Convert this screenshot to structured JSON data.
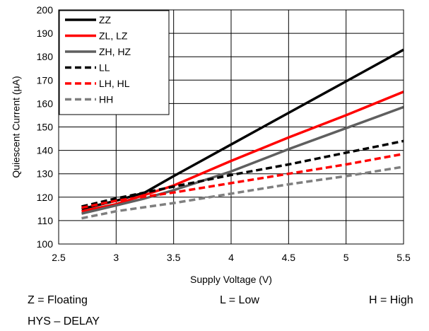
{
  "chart_data": {
    "type": "line",
    "title": "",
    "xlabel": "Supply Voltage (V)",
    "ylabel": "Quiescent Current (µA)",
    "xlim": [
      2.5,
      5.5
    ],
    "ylim": [
      100,
      200
    ],
    "xticks": [
      "2.5",
      "3",
      "3.5",
      "4",
      "4.5",
      "5",
      "5.5"
    ],
    "yticks": [
      "100",
      "110",
      "120",
      "130",
      "140",
      "150",
      "160",
      "170",
      "180",
      "190",
      "200"
    ],
    "grid": true,
    "legend_position": "top-left",
    "series": [
      {
        "name": "ZZ",
        "color": "#000000",
        "dash": "solid",
        "points": [
          [
            2.7,
            115
          ],
          [
            3.0,
            118.5
          ],
          [
            3.25,
            122
          ],
          [
            3.5,
            129
          ],
          [
            4.0,
            142.5
          ],
          [
            4.5,
            156
          ],
          [
            5.0,
            169.5
          ],
          [
            5.5,
            183
          ]
        ]
      },
      {
        "name": "ZL, LZ",
        "color": "#ff0000",
        "dash": "solid",
        "points": [
          [
            2.7,
            114
          ],
          [
            3.0,
            117
          ],
          [
            3.25,
            121
          ],
          [
            3.5,
            125
          ],
          [
            4.0,
            135.5
          ],
          [
            4.5,
            145.5
          ],
          [
            5.0,
            155
          ],
          [
            5.5,
            165
          ]
        ]
      },
      {
        "name": "ZH, HZ",
        "color": "#5f5f5f",
        "dash": "solid",
        "points": [
          [
            2.7,
            113
          ],
          [
            3.0,
            116.5
          ],
          [
            3.25,
            119.5
          ],
          [
            3.5,
            123
          ],
          [
            4.0,
            131
          ],
          [
            4.5,
            140.5
          ],
          [
            5.0,
            149.5
          ],
          [
            5.5,
            158.5
          ]
        ]
      },
      {
        "name": "LL",
        "color": "#000000",
        "dash": "dashed",
        "points": [
          [
            2.7,
            116
          ],
          [
            3.0,
            119.5
          ],
          [
            3.5,
            124.5
          ],
          [
            4.0,
            129.5
          ],
          [
            4.5,
            134
          ],
          [
            5.0,
            139
          ],
          [
            5.5,
            144
          ]
        ]
      },
      {
        "name": "LH, HL",
        "color": "#ff0000",
        "dash": "dashed",
        "points": [
          [
            2.7,
            115.5
          ],
          [
            3.0,
            118.5
          ],
          [
            3.5,
            122
          ],
          [
            4.0,
            126
          ],
          [
            4.5,
            130
          ],
          [
            5.0,
            134
          ],
          [
            5.5,
            138.5
          ]
        ]
      },
      {
        "name": "HH",
        "color": "#7f7f7f",
        "dash": "dashed",
        "points": [
          [
            2.7,
            111
          ],
          [
            3.0,
            114
          ],
          [
            3.5,
            117.5
          ],
          [
            4.0,
            121.5
          ],
          [
            4.5,
            125.5
          ],
          [
            5.0,
            129
          ],
          [
            5.5,
            133
          ]
        ]
      }
    ]
  },
  "notes": {
    "z_floating": "Z = Floating",
    "l_low": "L = Low",
    "h_high": "H = High",
    "hys_delay": "HYS – DELAY"
  }
}
